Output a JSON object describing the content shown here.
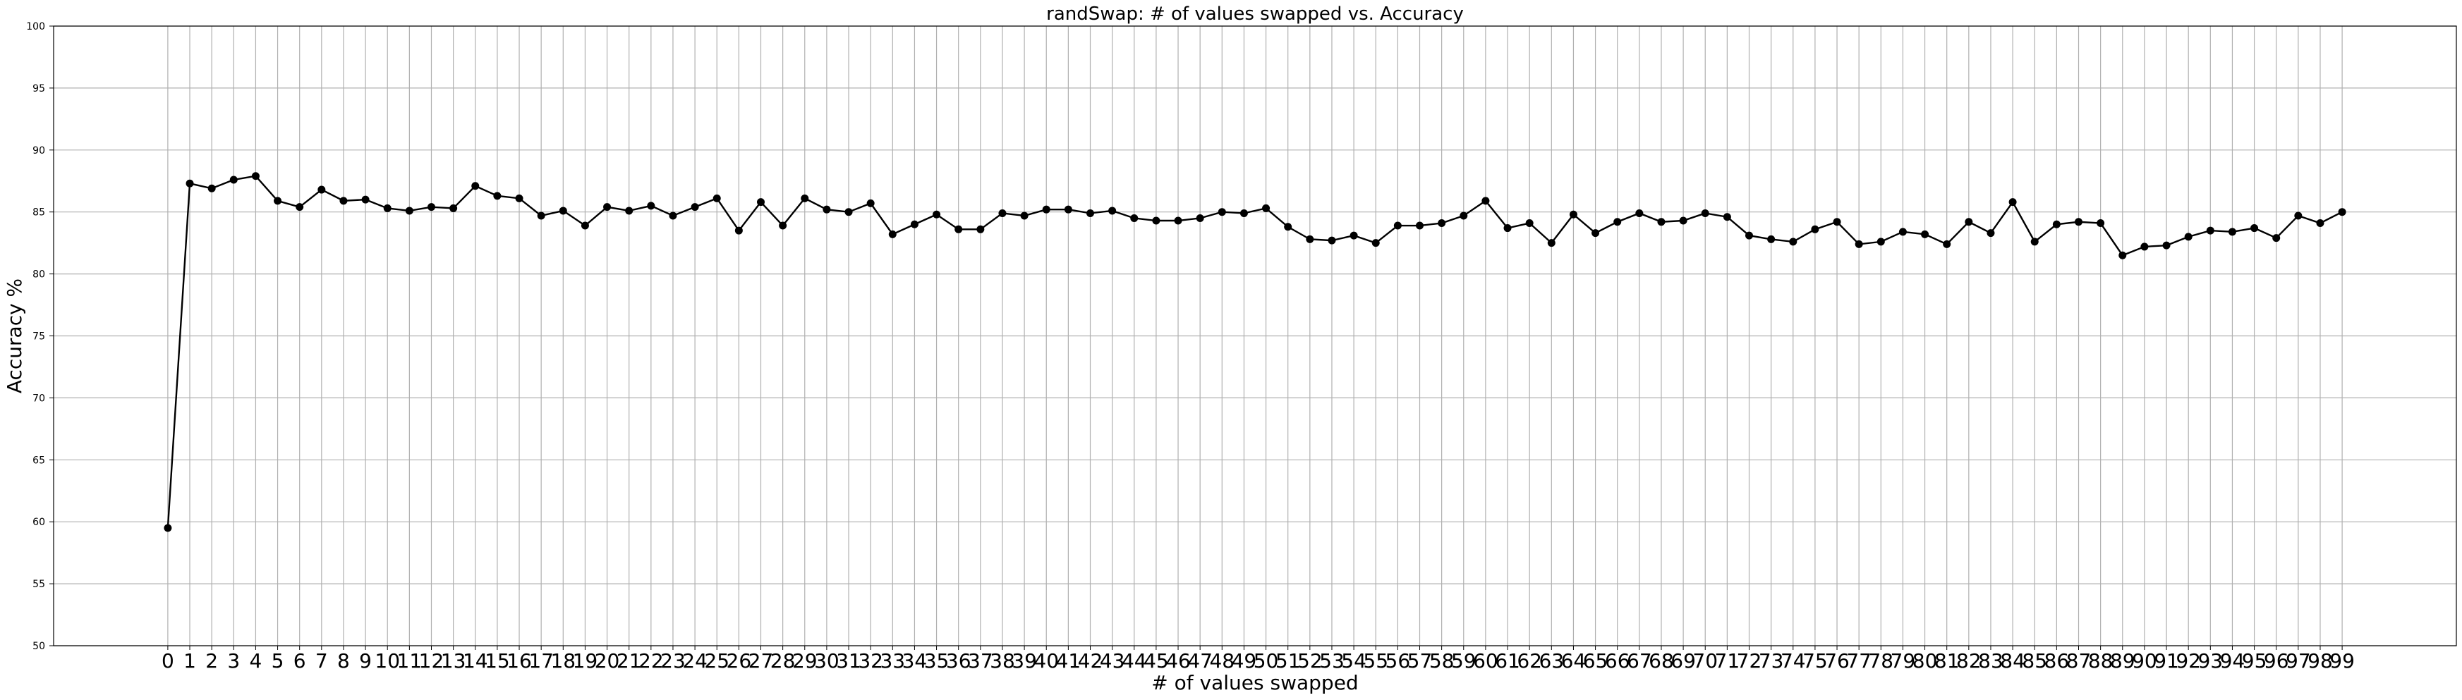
{
  "chart_data": {
    "type": "line",
    "title": "randSwap: # of values swapped vs. Accuracy",
    "xlabel": "# of values swapped",
    "ylabel": "Accuracy %",
    "ylim": [
      50,
      100
    ],
    "yticks": [
      "50",
      "55",
      "60",
      "65",
      "70",
      "75",
      "80",
      "85",
      "90",
      "95",
      "100"
    ],
    "xlim": [
      -5.2,
      104.2
    ],
    "grid": true,
    "marker_color": "#000000",
    "line_color": "#000000",
    "x": [
      0,
      1,
      2,
      3,
      4,
      5,
      6,
      7,
      8,
      9,
      10,
      11,
      12,
      13,
      14,
      15,
      16,
      17,
      18,
      19,
      20,
      21,
      22,
      23,
      24,
      25,
      26,
      27,
      28,
      29,
      30,
      31,
      32,
      33,
      34,
      35,
      36,
      37,
      38,
      39,
      40,
      41,
      42,
      43,
      44,
      45,
      46,
      47,
      48,
      49,
      50,
      51,
      52,
      53,
      54,
      55,
      56,
      57,
      58,
      59,
      60,
      61,
      62,
      63,
      64,
      65,
      66,
      67,
      68,
      69,
      70,
      71,
      72,
      73,
      74,
      75,
      76,
      77,
      78,
      79,
      80,
      81,
      82,
      83,
      84,
      85,
      86,
      87,
      88,
      89,
      90,
      91,
      92,
      93,
      94,
      95,
      96,
      97,
      98,
      99
    ],
    "series": [
      {
        "values": [
          59.5,
          87.3,
          86.9,
          87.6,
          87.9,
          85.9,
          85.4,
          86.8,
          85.9,
          86.0,
          85.3,
          85.1,
          85.4,
          85.3,
          87.1,
          86.3,
          86.1,
          84.7,
          85.1,
          83.9,
          85.4,
          85.1,
          85.5,
          84.7,
          85.4,
          86.1,
          83.5,
          85.8,
          83.9,
          86.1,
          85.2,
          85.0,
          85.7,
          83.2,
          84.0,
          84.8,
          83.6,
          83.6,
          84.9,
          84.7,
          85.2,
          85.2,
          84.9,
          85.1,
          84.5,
          84.3,
          84.3,
          84.5,
          85.0,
          84.9,
          85.3,
          83.8,
          82.8,
          82.7,
          83.1,
          82.5,
          83.9,
          83.9,
          84.1,
          84.7,
          85.9,
          83.7,
          84.1,
          82.5,
          84.8,
          83.3,
          84.2,
          84.9,
          84.2,
          84.3,
          84.9,
          84.6,
          83.1,
          82.8,
          82.6,
          83.6,
          84.2,
          82.4,
          82.6,
          83.4,
          83.2,
          82.4,
          84.2,
          83.3,
          85.8,
          82.6,
          84.0,
          84.2,
          84.1,
          81.5,
          82.2,
          82.3,
          83.0,
          83.5,
          83.4,
          83.7,
          82.9,
          84.7,
          84.1,
          85.0
        ]
      }
    ]
  }
}
